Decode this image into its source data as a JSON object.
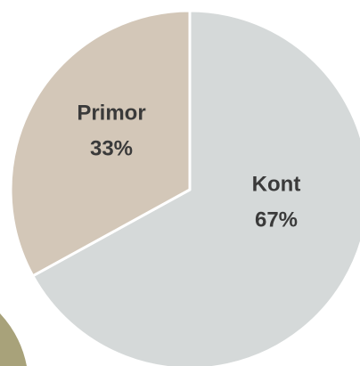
{
  "chart_data": {
    "type": "pie",
    "categories": [
      "Kont",
      "Primor"
    ],
    "values": [
      67,
      33
    ],
    "value_labels": [
      "67%",
      "33%"
    ],
    "colors": [
      "#d5d9d9",
      "#d3c7b8"
    ]
  }
}
